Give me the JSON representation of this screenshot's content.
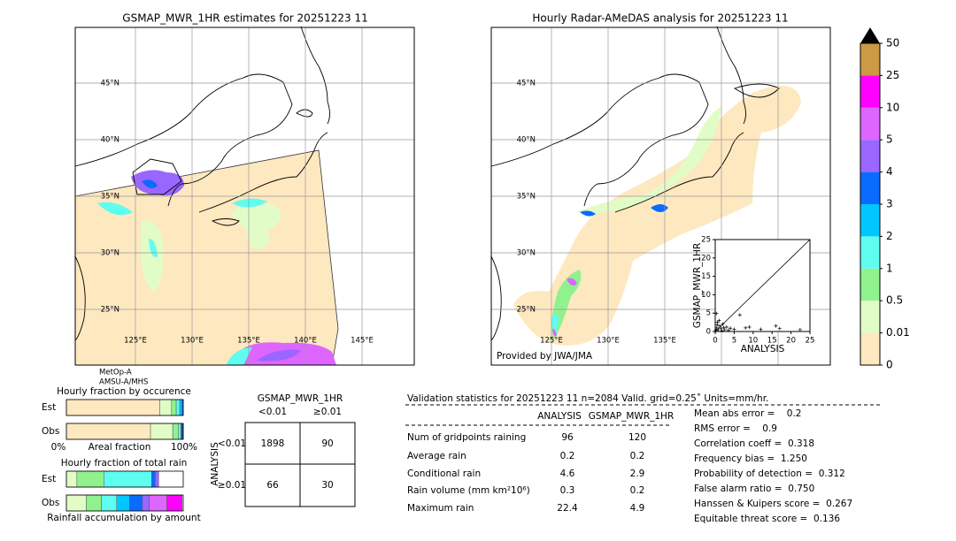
{
  "left_map": {
    "title": "GSMAP_MWR_1HR estimates for 20251223 11",
    "lat_labels": [
      "45°N",
      "40°N",
      "35°N",
      "30°N",
      "25°N"
    ],
    "lon_labels": [
      "125°E",
      "130°E",
      "135°E",
      "140°E",
      "145°E"
    ],
    "satellite": [
      "MetOp-A",
      "AMSU-A/MHS"
    ]
  },
  "right_map": {
    "title": "Hourly Radar-AMeDAS analysis for 20251223 11",
    "lat_labels": [
      "45°N",
      "40°N",
      "35°N",
      "30°N",
      "25°N"
    ],
    "lon_labels": [
      "125°E",
      "130°E",
      "135°E"
    ],
    "credit": "Provided by JWA/JMA"
  },
  "colorbar": {
    "ticks": [
      0,
      0.01,
      0.5,
      1,
      2,
      3,
      4,
      5,
      10,
      25,
      50
    ],
    "colors": [
      "#fde8c0",
      "#e2fcc8",
      "#90f28c",
      "#5ffcf0",
      "#00c8ff",
      "#0a6cff",
      "#9966ff",
      "#dd66ff",
      "#ff00ff",
      "#cc9944"
    ],
    "extend_color": "#000000"
  },
  "scatter": {
    "type": "scatter",
    "xlabel": "ANALYSIS",
    "ylabel": "GSMAP_MWR_1HR",
    "xlim": [
      0,
      25
    ],
    "ylim": [
      0,
      25
    ],
    "xticks": [
      0,
      5,
      10,
      15,
      20,
      25
    ],
    "yticks": [
      0,
      5,
      10,
      15,
      20,
      25
    ],
    "x": [
      0.2,
      0.4,
      0.6,
      0.8,
      1,
      1.2,
      1.5,
      2,
      2.5,
      3,
      3.5,
      4,
      5,
      6.5,
      8,
      9,
      12,
      16,
      17,
      22.4,
      0.3,
      0.5,
      1.8,
      2.2
    ],
    "y": [
      0.3,
      1,
      2.5,
      0.5,
      3,
      1.5,
      0.8,
      2,
      0.5,
      1.2,
      0.3,
      0.9,
      0.6,
      4.5,
      1,
      1.2,
      0.6,
      1.5,
      0.8,
      0.5,
      4.9,
      1.8,
      0.2,
      1.1
    ]
  },
  "occurrence": {
    "title": "Hourly fraction by occurence",
    "rows": [
      "Est",
      "Obs"
    ],
    "axis_labels": [
      "0%",
      "Areal fraction",
      "100%"
    ],
    "segments": [
      {
        "values": [
          0.8,
          0.1,
          0.04,
          0.03,
          0.02,
          0.01
        ],
        "colors": [
          "#fde8c0",
          "#e2fcc8",
          "#90f28c",
          "#5ffcf0",
          "#00c8ff",
          "#0a6cff"
        ]
      },
      {
        "values": [
          0.72,
          0.19,
          0.05,
          0.02,
          0.01,
          0.01
        ],
        "colors": [
          "#fde8c0",
          "#e2fcc8",
          "#90f28c",
          "#5ffcf0",
          "#0a6cff",
          "#223388"
        ]
      }
    ]
  },
  "total_rain": {
    "title": "Hourly fraction of total rain",
    "rows": [
      "Est",
      "Obs"
    ],
    "xlabel": "Rainfall accumulation by amount",
    "segments": [
      {
        "values": [
          0.09,
          0.23,
          0.41,
          0.03,
          0.03
        ],
        "colors": [
          "#e2fcc8",
          "#90f28c",
          "#5ffcf0",
          "#0a6cff",
          "#9966ff"
        ]
      },
      {
        "values": [
          0.17,
          0.13,
          0.13,
          0.11,
          0.11,
          0.06,
          0.15,
          0.13
        ],
        "colors": [
          "#e2fcc8",
          "#90f28c",
          "#5ffcf0",
          "#00c8ff",
          "#0a6cff",
          "#9966ff",
          "#dd66ff",
          "#ff00ff"
        ]
      }
    ]
  },
  "contingency": {
    "title": "GSMAP_MWR_1HR",
    "col_labels": [
      "<0.01",
      "≥0.01"
    ],
    "row_title": "ANALYSIS",
    "row_labels": [
      "<0.01",
      "≥0.01"
    ],
    "cells": [
      [
        1898,
        90
      ],
      [
        66,
        30
      ]
    ]
  },
  "validation": {
    "header": "Validation statistics for 20251223 11  n=2084 Valid. grid=0.25˚ Units=mm/hr.",
    "columns": [
      "ANALYSIS",
      "GSMAP_MWR_1HR"
    ],
    "rows": [
      {
        "label": "Num of gridpoints raining",
        "values": [
          96,
          120
        ]
      },
      {
        "label": "Average rain",
        "values": [
          0.2,
          0.2
        ]
      },
      {
        "label": "Conditional rain",
        "values": [
          4.6,
          2.9
        ]
      },
      {
        "label": "Rain volume (mm km²10⁶)",
        "values": [
          0.3,
          0.2
        ]
      },
      {
        "label": "Maximum rain",
        "values": [
          22.4,
          4.9
        ]
      }
    ],
    "scores": [
      "Mean abs error =    0.2",
      "RMS error =    0.9",
      "Correlation coeff =  0.318",
      "Frequency bias =  1.250",
      "Probability of detection =  0.312",
      "False alarm ratio =  0.750",
      "Hanssen & Kuipers score =  0.267",
      "Equitable threat score =  0.136"
    ]
  }
}
